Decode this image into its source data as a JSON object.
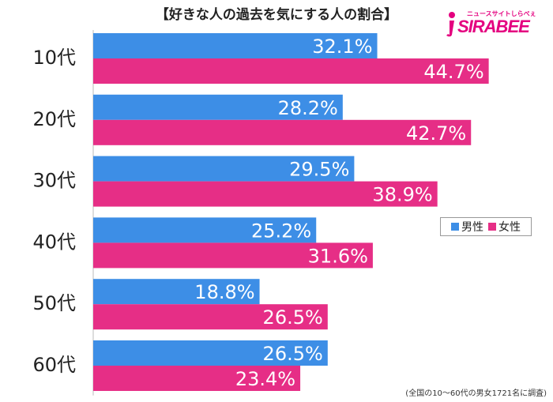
{
  "title": "【好きな人の過去を気にする人の割合】",
  "logo": {
    "small": "ニュースサイトしらべぇ",
    "main": "SIRABEE"
  },
  "footnote": "(全国の10〜60代の男女1721名に調査)",
  "colors": {
    "male": "#3d8ee6",
    "female": "#e62e86",
    "logo": "#e4007f"
  },
  "chart_data": {
    "type": "bar",
    "orientation": "horizontal",
    "categories": [
      "10代",
      "20代",
      "30代",
      "40代",
      "50代",
      "60代"
    ],
    "series": [
      {
        "name": "男性",
        "values": [
          32.1,
          28.2,
          29.5,
          25.2,
          18.8,
          26.5
        ]
      },
      {
        "name": "女性",
        "values": [
          44.7,
          42.7,
          38.9,
          31.6,
          26.5,
          23.4
        ]
      }
    ],
    "value_suffix": "%",
    "xlim": [
      0,
      60
    ],
    "legend_position": "right",
    "grid": false
  }
}
